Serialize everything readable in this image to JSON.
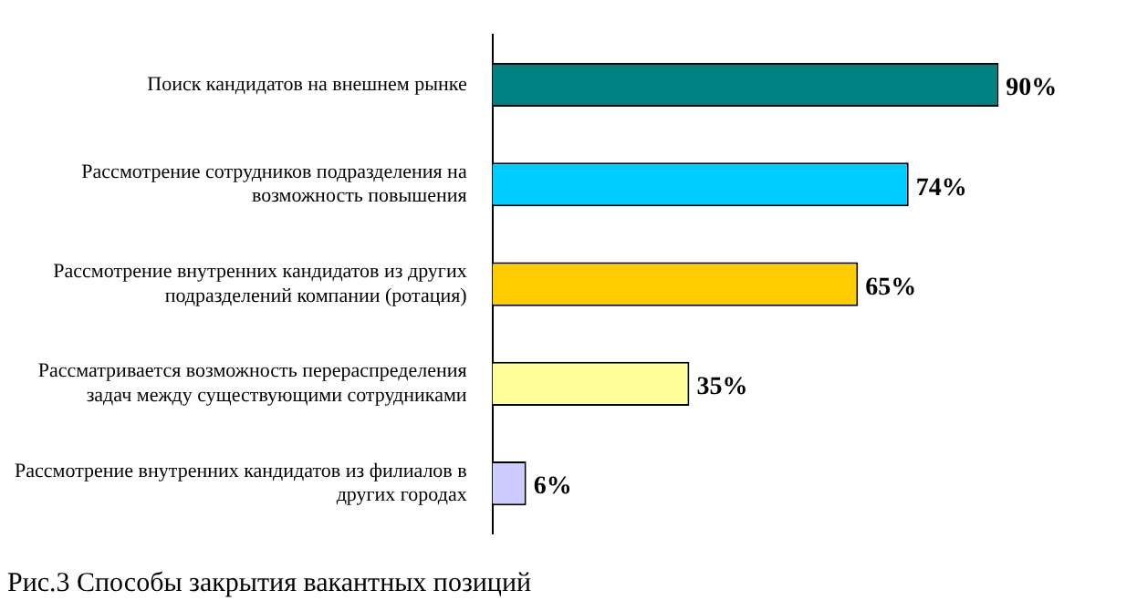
{
  "chart_data": {
    "type": "bar",
    "orientation": "horizontal",
    "title": "Рис.3 Способы закрытия вакантных позиций",
    "categories": [
      "Поиск кандидатов на внешнем рынке",
      "Рассмотрение сотрудников подразделения на возможность повышения",
      "Рассмотрение внутренних кандидатов из других подразделений компании (ротация)",
      "Рассматривается возможность перераспределения задач между существующими сотрудниками",
      "Рассмотрение внутренних кандидатов из филиалов в других городах"
    ],
    "values": [
      90,
      74,
      65,
      35,
      6
    ],
    "colors": [
      "#008080",
      "#00ccff",
      "#ffcc00",
      "#ffff99",
      "#ccccff"
    ],
    "value_labels": [
      "90%",
      "74%",
      "65%",
      "35%",
      "6%"
    ],
    "legend": false
  }
}
